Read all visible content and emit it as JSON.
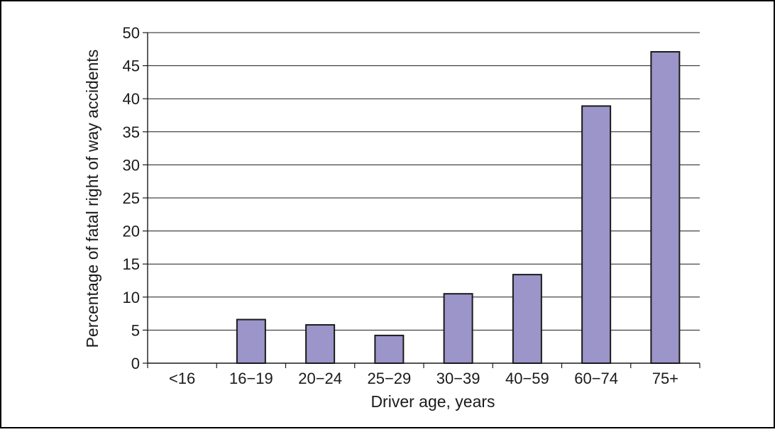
{
  "chart_data": {
    "type": "bar",
    "categories": [
      "<16",
      "16−19",
      "20−24",
      "25−29",
      "30−39",
      "40−59",
      "60−74",
      "75+"
    ],
    "values": [
      0,
      6.6,
      5.8,
      4.2,
      10.5,
      13.4,
      38.9,
      47.1
    ],
    "title": "",
    "xlabel": "Driver age, years",
    "ylabel": "Percentage of fatal right of way accidents",
    "ylim": [
      0,
      50
    ],
    "yticks": [
      0,
      5,
      10,
      15,
      20,
      25,
      30,
      35,
      40,
      45,
      50
    ],
    "grid": true,
    "legend": "none",
    "bar_color": "#9b95c9",
    "bar_edge_color": "#1a1a1a"
  }
}
